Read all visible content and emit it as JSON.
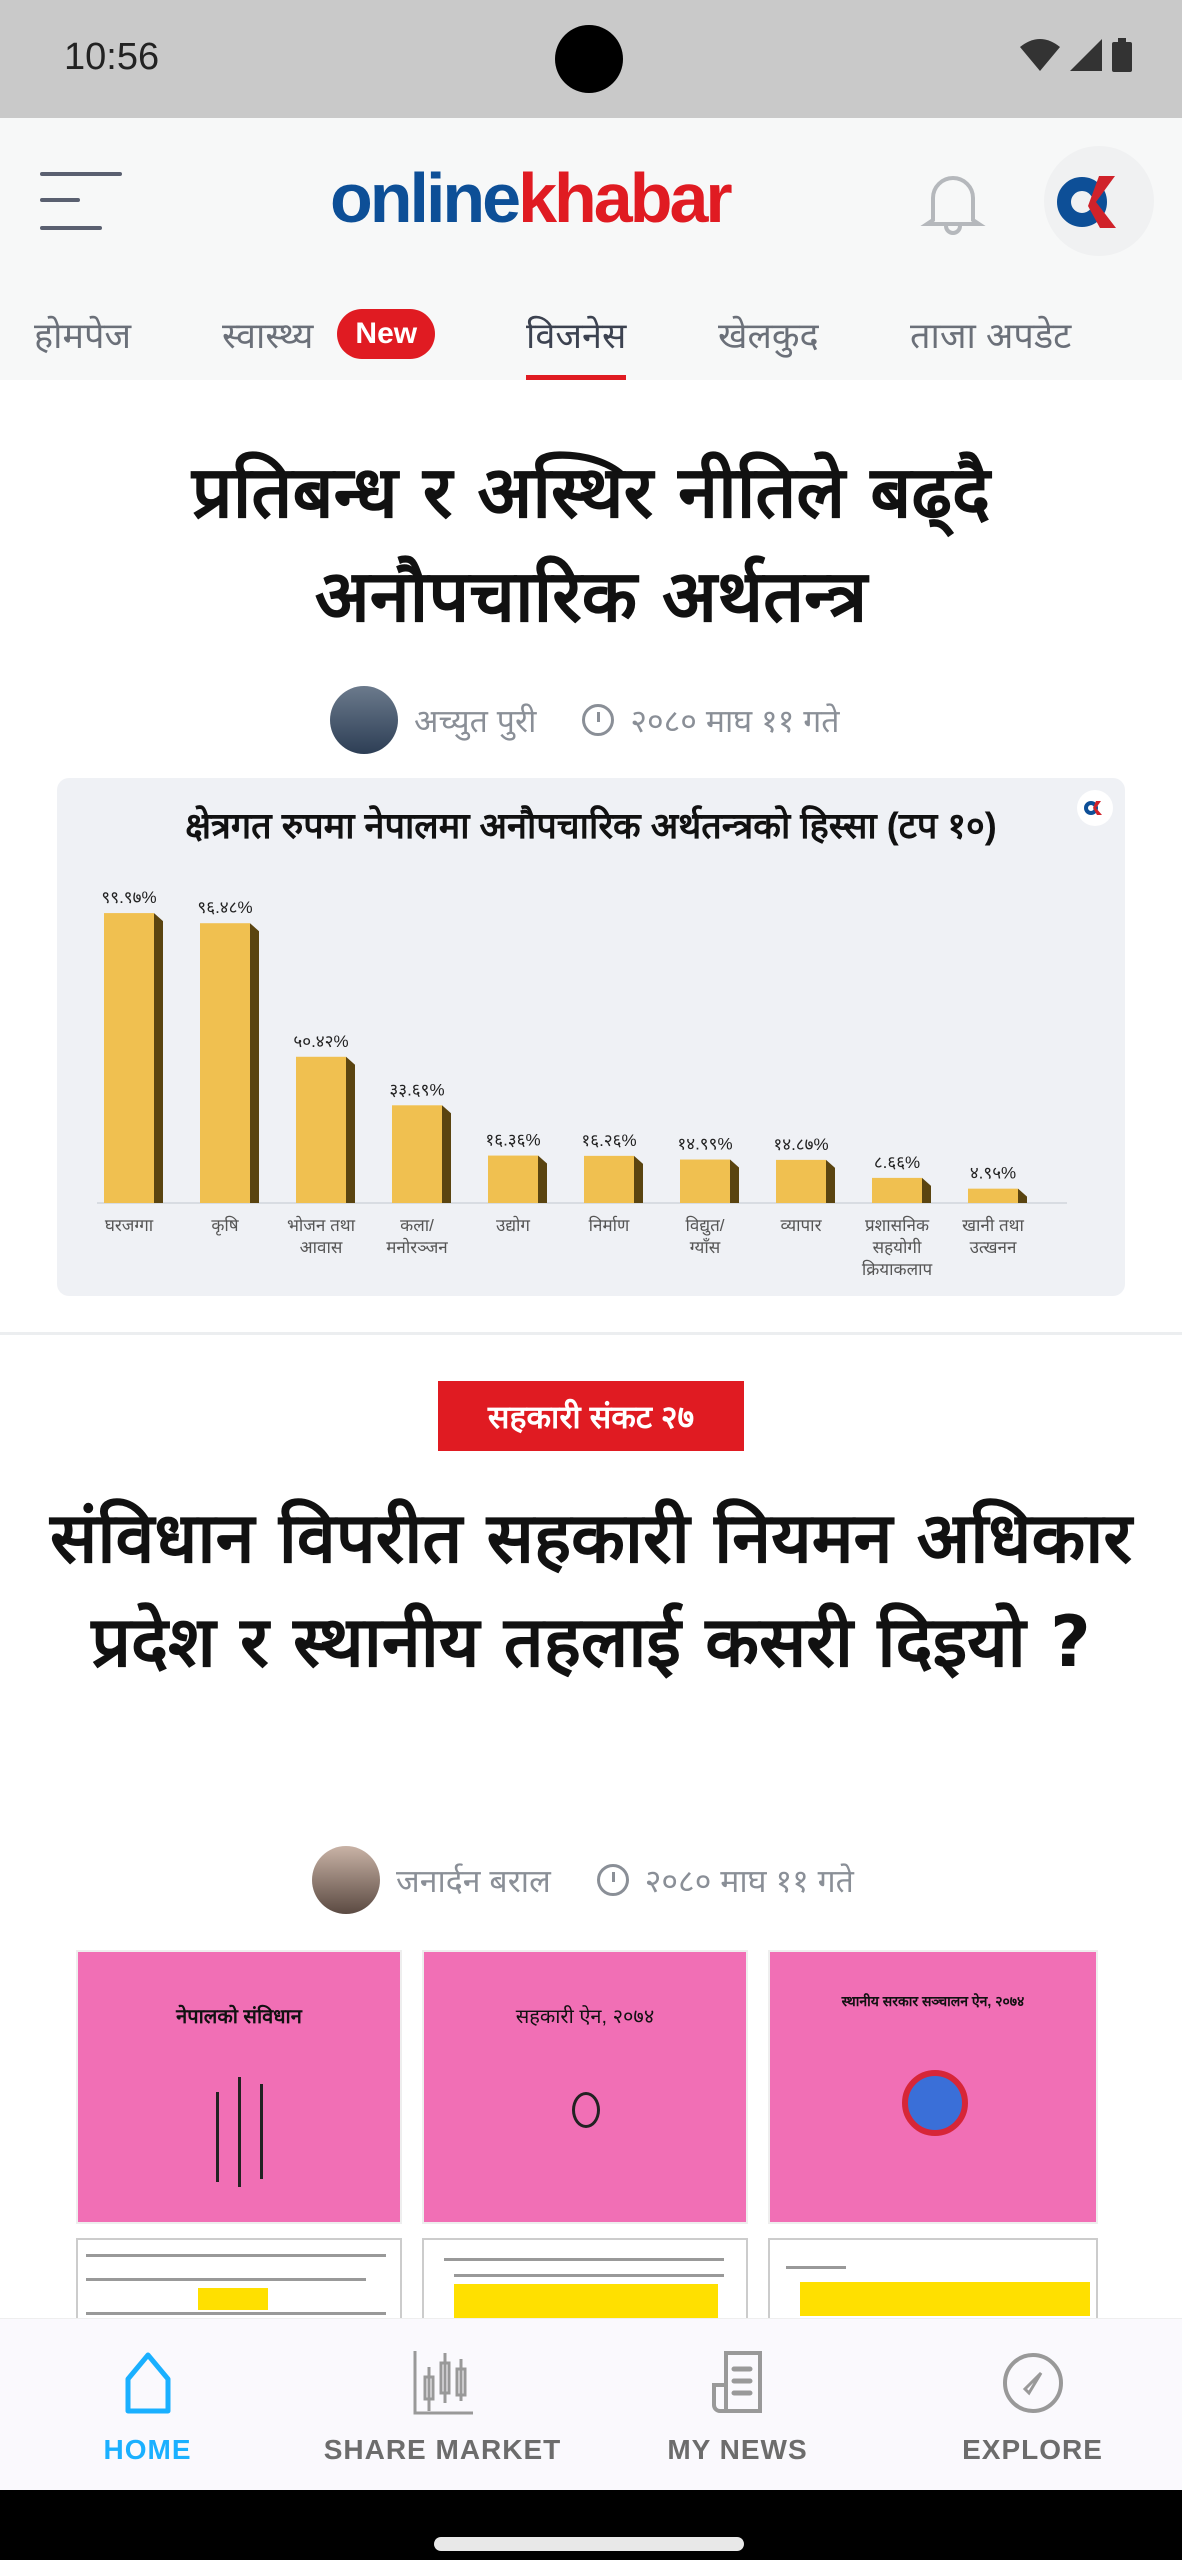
{
  "status_bar": {
    "time": "10:56"
  },
  "header": {
    "logo_part1": "online",
    "logo_part2": "khabar",
    "colors": {
      "brand_blue": "#0d4f97",
      "brand_red": "#e01b22"
    }
  },
  "tabs": [
    {
      "label": "होमपेज"
    },
    {
      "label": "स्वास्थ्य",
      "badge": "New"
    },
    {
      "label": "विजनेस",
      "active": true
    },
    {
      "label": "खेलकुद"
    },
    {
      "label": "ताजा अपडेट"
    }
  ],
  "articles": [
    {
      "title": "प्रतिबन्ध र अस्थिर नीतिले बढ्दै अनौपचारिक अर्थतन्त्र",
      "author": "अच्युत पुरी",
      "date": "२०८० माघ ११ गते"
    },
    {
      "category": "सहकारी संकट २७",
      "title": "संविधान विपरीत सहकारी नियमन अधिकार प्रदेश र स्थानीय तहलाई कसरी दिइयो ?",
      "author": "जनार्दन बराल",
      "date": "२०८० माघ ११ गते",
      "images": [
        {
          "caption": "नेपालको संविधान"
        },
        {
          "caption": "सहकारी ऐन, २०७४"
        },
        {
          "caption": "स्थानीय सरकार सञ्चालन ऐन, २०७४"
        }
      ]
    }
  ],
  "chart_data": {
    "type": "bar",
    "title": "क्षेत्रगत रुपमा नेपालमा अनौपचारिक अर्थतन्त्रको हिस्सा (टप १०)",
    "categories": [
      "घरजग्गा",
      "कृषि",
      "भोजन तथा आवास",
      "कला/ मनोरञ्जन",
      "उद्योग",
      "निर्माण",
      "विद्युत/ ग्याँस",
      "व्यापार",
      "प्रशासनिक सहयोगी क्रियाकलाप",
      "खानी तथा उत्खनन"
    ],
    "values": [
      99.97,
      96.48,
      50.42,
      33.69,
      16.36,
      16.26,
      14.99,
      14.87,
      8.66,
      4.95
    ],
    "labels": [
      "९९.९७%",
      "९६.४८%",
      "५०.४२%",
      "३३.६९%",
      "१६.३६%",
      "१६.२६%",
      "१४.९९%",
      "१४.८७%",
      "८.६६%",
      "४.९५%"
    ],
    "ylim": [
      0,
      100
    ],
    "grid": false,
    "bar_color": "#f0c050",
    "bar_side_color": "#5a4410"
  },
  "bottom_nav": [
    {
      "label": "HOME",
      "icon": "home-icon",
      "active": true
    },
    {
      "label": "SHARE MARKET",
      "icon": "candlestick-chart-icon"
    },
    {
      "label": "MY NEWS",
      "icon": "newspaper-icon"
    },
    {
      "label": "EXPLORE",
      "icon": "compass-icon"
    }
  ],
  "colors": {
    "active_nav": "#1ab0ff",
    "category_badge": "#e01b22"
  }
}
